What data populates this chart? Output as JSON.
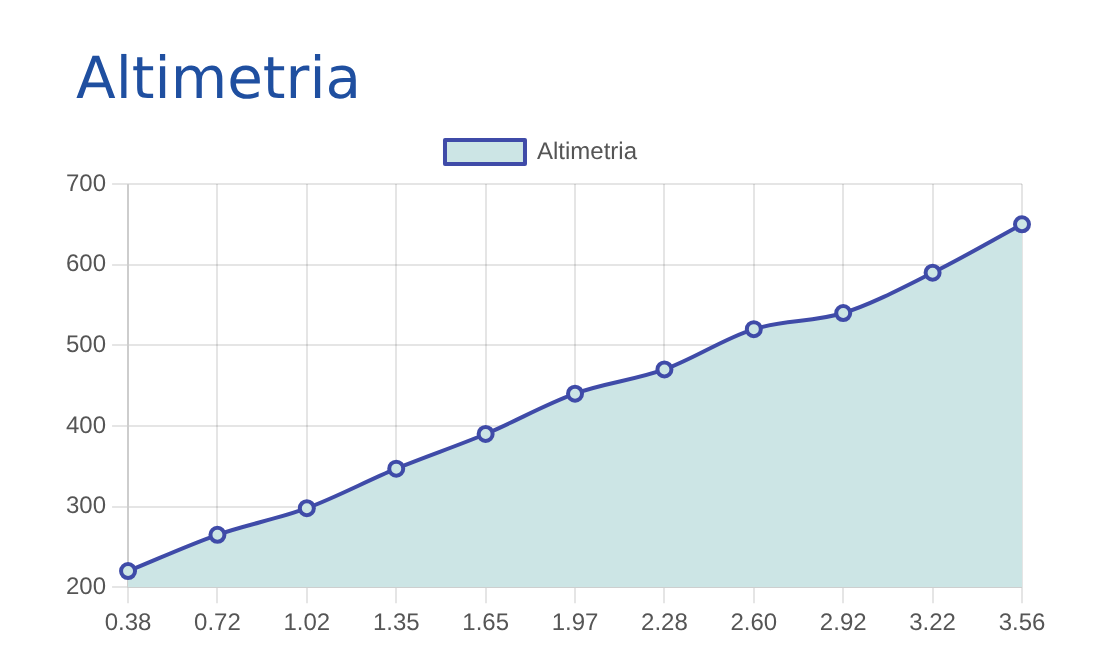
{
  "chart_data": {
    "type": "area",
    "title": "Altimetria",
    "categories": [
      "0.38",
      "0.72",
      "1.02",
      "1.35",
      "1.65",
      "1.97",
      "2.28",
      "2.60",
      "2.92",
      "3.22",
      "3.56"
    ],
    "series": [
      {
        "name": "Altimetria",
        "color": "#3f4ba8",
        "values": [
          220,
          265,
          298,
          347,
          390,
          440,
          470,
          520,
          540,
          590,
          650
        ]
      }
    ],
    "ylim": [
      200,
      700
    ],
    "yticks": [
      200,
      300,
      400,
      500,
      600,
      700
    ],
    "grid": true,
    "legend": "top",
    "marker": "circle",
    "line_style": "solid"
  }
}
